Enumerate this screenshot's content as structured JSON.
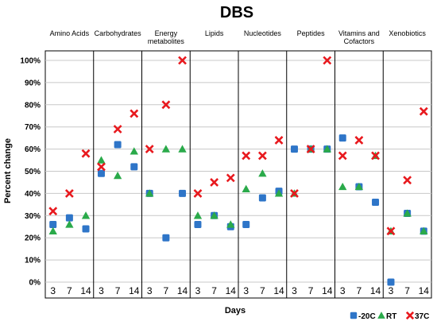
{
  "chart_data": {
    "type": "scatter",
    "title": "DBS",
    "xlabel": "Days",
    "ylabel": "Percent change",
    "ylim": [
      0,
      100
    ],
    "yticks": [
      "0%",
      "10%",
      "20%",
      "30%",
      "40%",
      "50%",
      "60%",
      "70%",
      "80%",
      "90%",
      "100%"
    ],
    "days": [
      "3",
      "7",
      "14"
    ],
    "categories": [
      "Amino Acids",
      "Carbohydrates",
      "Energy metabolites",
      "Lipids",
      "Nucleotides",
      "Peptides",
      "Vitamins and Cofactors",
      "Xenobiotics"
    ],
    "category_lines": [
      [
        "Amino Acids"
      ],
      [
        "Carbohydrates"
      ],
      [
        "Energy",
        "metabolites"
      ],
      [
        "Lipids"
      ],
      [
        "Nucleotides"
      ],
      [
        "Peptides"
      ],
      [
        "Vitamins and",
        "Cofactors"
      ],
      [
        "Xenobiotics"
      ]
    ],
    "grid": true,
    "legend_position": "bottom-right",
    "series": [
      {
        "name": "-20C",
        "color": "#2e75c8",
        "marker": "square",
        "values": [
          [
            26,
            29,
            24
          ],
          [
            49,
            62,
            52
          ],
          [
            40,
            20,
            40
          ],
          [
            26,
            30,
            25
          ],
          [
            26,
            38,
            41
          ],
          [
            60,
            60,
            60
          ],
          [
            65,
            43,
            36
          ],
          [
            0,
            31,
            23
          ]
        ]
      },
      {
        "name": "RT",
        "color": "#2aaa4a",
        "marker": "triangle",
        "values": [
          [
            23,
            26,
            30
          ],
          [
            55,
            48,
            59
          ],
          [
            40,
            60,
            60
          ],
          [
            30,
            30,
            26
          ],
          [
            42,
            49,
            40
          ],
          [
            40,
            60,
            60
          ],
          [
            43,
            43,
            57
          ],
          [
            23,
            31,
            23
          ]
        ]
      },
      {
        "name": "37C",
        "color": "#e8191e",
        "marker": "cross",
        "values": [
          [
            32,
            40,
            58
          ],
          [
            52,
            69,
            76
          ],
          [
            60,
            80,
            100
          ],
          [
            40,
            45,
            47
          ],
          [
            57,
            57,
            64
          ],
          [
            40,
            60,
            100
          ],
          [
            57,
            64,
            57
          ],
          [
            23,
            46,
            77
          ]
        ]
      }
    ]
  }
}
